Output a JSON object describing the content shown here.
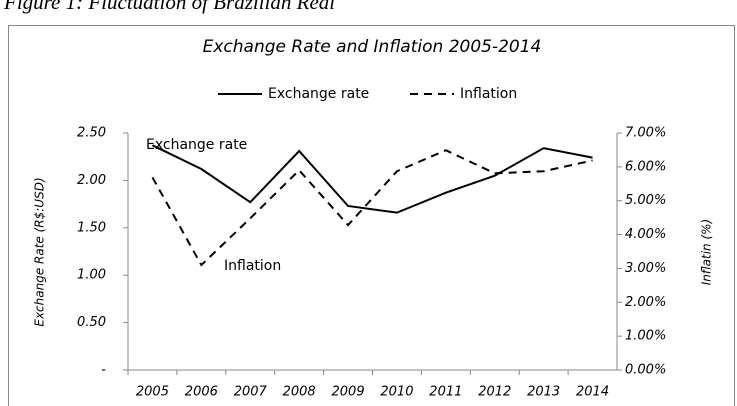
{
  "figure_caption": "Figure 1: Fluctuation of Brazilian Real",
  "chart_data": {
    "type": "line",
    "title": "Exchange Rate and Inflation 2005-2014",
    "y_label": "Exchange Rate (R$:USD)",
    "y2_label": "Inflatin (%)",
    "categories": [
      "2005",
      "2006",
      "2007",
      "2008",
      "2009",
      "2010",
      "2011",
      "2012",
      "2013",
      "2014"
    ],
    "series": [
      {
        "name": "Exchange rate",
        "color": "#000000",
        "dash": "solid",
        "values": [
          2.37,
          2.12,
          1.77,
          2.31,
          1.73,
          1.66,
          1.87,
          2.05,
          2.34,
          2.24
        ]
      },
      {
        "name": "Inflation",
        "color": "#000000",
        "dash": "dashed",
        "axis": "y2",
        "values": [
          5.69,
          3.1,
          4.48,
          5.9,
          4.28,
          5.87,
          6.49,
          5.81,
          5.87,
          6.19
        ]
      }
    ],
    "annotations": [
      "Exchange rate",
      "Inflation"
    ],
    "ylim": [
      0,
      2.5
    ],
    "yticks": [
      {
        "value": 0,
        "label": "-"
      },
      {
        "value": 0.5,
        "label": "0.50"
      },
      {
        "value": 1,
        "label": "1.00"
      },
      {
        "value": 1.5,
        "label": "1.50"
      },
      {
        "value": 2,
        "label": "2.00"
      },
      {
        "value": 2.5,
        "label": "2.50"
      }
    ],
    "y2lim": [
      0,
      7
    ],
    "y2ticks": [
      {
        "value": 0,
        "label": "0.00%"
      },
      {
        "value": 1,
        "label": "1.00%"
      },
      {
        "value": 2,
        "label": "2.00%"
      },
      {
        "value": 3,
        "label": "3.00%"
      },
      {
        "value": 4,
        "label": "4.00%"
      },
      {
        "value": 5,
        "label": "5.00%"
      },
      {
        "value": 6,
        "label": "6.00%"
      },
      {
        "value": 7,
        "label": "7.00%"
      }
    ],
    "legend": "top",
    "grid": false
  }
}
